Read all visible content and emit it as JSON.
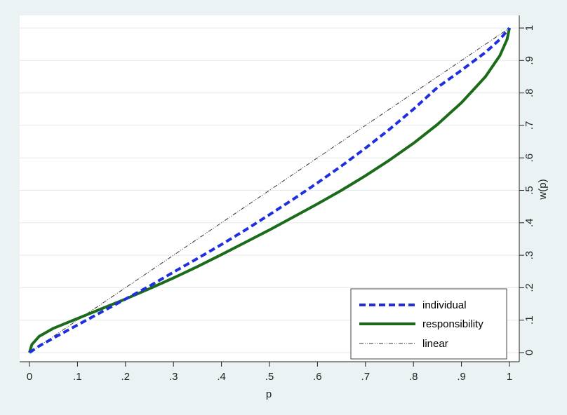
{
  "chart_data": {
    "type": "line",
    "xlabel": "p",
    "ylabel": "w(p)",
    "xlim": [
      0,
      1
    ],
    "ylim": [
      0,
      1
    ],
    "x_ticks": [
      "0",
      ".1",
      ".2",
      ".3",
      ".4",
      ".5",
      ".6",
      ".7",
      ".8",
      ".9",
      "1"
    ],
    "y_ticks": [
      "0",
      ".1",
      ".2",
      ".3",
      ".4",
      ".5",
      ".6",
      ".7",
      ".8",
      ".9",
      "1"
    ],
    "y_axis_position": "right",
    "grid": true,
    "legend_position": "bottom-right",
    "series": [
      {
        "name": "individual",
        "color": "#1f2fe0",
        "style": "dashed",
        "x": [
          0,
          0.02,
          0.05,
          0.1,
          0.15,
          0.2,
          0.25,
          0.3,
          0.35,
          0.4,
          0.45,
          0.5,
          0.55,
          0.6,
          0.65,
          0.7,
          0.75,
          0.8,
          0.85,
          0.9,
          0.95,
          0.98,
          1.0
        ],
        "y": [
          0,
          0.02,
          0.045,
          0.085,
          0.125,
          0.165,
          0.205,
          0.248,
          0.29,
          0.333,
          0.378,
          0.425,
          0.473,
          0.523,
          0.575,
          0.63,
          0.688,
          0.75,
          0.817,
          0.87,
          0.925,
          0.965,
          1.0
        ]
      },
      {
        "name": "responsibility",
        "color": "#1b6b1b",
        "style": "solid",
        "x": [
          0,
          0.005,
          0.02,
          0.05,
          0.1,
          0.15,
          0.2,
          0.25,
          0.3,
          0.35,
          0.4,
          0.45,
          0.5,
          0.55,
          0.6,
          0.65,
          0.7,
          0.75,
          0.8,
          0.85,
          0.9,
          0.95,
          0.98,
          0.995,
          1.0
        ],
        "y": [
          0,
          0.025,
          0.05,
          0.075,
          0.105,
          0.135,
          0.165,
          0.197,
          0.23,
          0.265,
          0.302,
          0.34,
          0.378,
          0.418,
          0.458,
          0.5,
          0.545,
          0.593,
          0.645,
          0.703,
          0.77,
          0.85,
          0.915,
          0.965,
          1.0
        ]
      },
      {
        "name": "linear",
        "color": "#333333",
        "style": "dash-dot",
        "x": [
          0,
          1
        ],
        "y": [
          0,
          1
        ]
      }
    ]
  }
}
